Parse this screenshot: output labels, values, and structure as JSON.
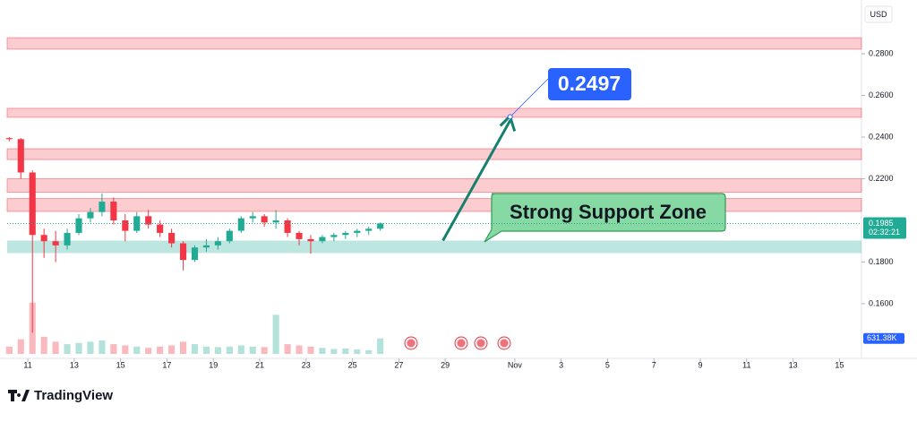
{
  "chart_data": {
    "type": "candlestick",
    "currency": "USD",
    "x": [
      -0.8,
      -0.3,
      0.2,
      0.7,
      1.2,
      1.7,
      2.2,
      2.7,
      3.2,
      3.7,
      4.2,
      4.7,
      5.2,
      5.7,
      6.2,
      6.7,
      7.2,
      7.7,
      8.2,
      8.7,
      9.2,
      9.7,
      10.2,
      10.7,
      11.2,
      11.7,
      12.2,
      12.7,
      13.2,
      13.7,
      14.2,
      14.7,
      15.2
    ],
    "open": [
      0.2395,
      0.239,
      0.223,
      0.193,
      0.19,
      0.188,
      0.194,
      0.201,
      0.204,
      0.209,
      0.2,
      0.195,
      0.202,
      0.198,
      0.194,
      0.189,
      0.181,
      0.187,
      0.188,
      0.19,
      0.195,
      0.201,
      0.202,
      0.199,
      0.2,
      0.194,
      0.191,
      0.19,
      0.192,
      0.193,
      0.194,
      0.195,
      0.196
    ],
    "high": [
      0.24,
      0.2395,
      0.224,
      0.196,
      0.195,
      0.196,
      0.203,
      0.206,
      0.213,
      0.211,
      0.203,
      0.204,
      0.205,
      0.2,
      0.196,
      0.19,
      0.188,
      0.191,
      0.192,
      0.196,
      0.202,
      0.204,
      0.203,
      0.205,
      0.201,
      0.195,
      0.193,
      0.193,
      0.194,
      0.195,
      0.196,
      0.197,
      0.199
    ],
    "low": [
      0.238,
      0.22,
      0.146,
      0.182,
      0.18,
      0.186,
      0.193,
      0.199,
      0.202,
      0.198,
      0.19,
      0.194,
      0.196,
      0.192,
      0.187,
      0.176,
      0.18,
      0.185,
      0.186,
      0.189,
      0.194,
      0.199,
      0.197,
      0.196,
      0.192,
      0.188,
      0.184,
      0.189,
      0.19,
      0.191,
      0.192,
      0.193,
      0.195
    ],
    "close": [
      0.239,
      0.223,
      0.193,
      0.19,
      0.188,
      0.194,
      0.201,
      0.204,
      0.209,
      0.2,
      0.195,
      0.202,
      0.198,
      0.194,
      0.189,
      0.181,
      0.187,
      0.188,
      0.19,
      0.195,
      0.201,
      0.202,
      0.199,
      0.2,
      0.194,
      0.191,
      0.19,
      0.192,
      0.193,
      0.194,
      0.195,
      0.196,
      0.1985
    ],
    "volume": [
      300,
      600,
      2100,
      700,
      500,
      400,
      450,
      500,
      550,
      400,
      350,
      300,
      250,
      300,
      350,
      500,
      400,
      300,
      280,
      300,
      350,
      300,
      280,
      1600,
      400,
      350,
      300,
      250,
      200,
      220,
      180,
      150,
      631.38
    ],
    "volume_label": "631.38K",
    "vlim": [
      0,
      2200
    ],
    "up_color": "#22ab94",
    "down_color": "#f23645",
    "xlim": [
      -0.89,
      35.95
    ],
    "ylim": [
      0.1359,
      0.3058
    ],
    "xticks": [
      {
        "value": 0,
        "label": "11"
      },
      {
        "value": 2,
        "label": "13"
      },
      {
        "value": 4,
        "label": "15"
      },
      {
        "value": 6,
        "label": "17"
      },
      {
        "value": 8,
        "label": "19"
      },
      {
        "value": 10,
        "label": "21"
      },
      {
        "value": 12,
        "label": "23"
      },
      {
        "value": 14,
        "label": "25"
      },
      {
        "value": 16,
        "label": "27"
      },
      {
        "value": 18,
        "label": "29"
      },
      {
        "value": 21,
        "label": "Nov"
      },
      {
        "value": 23,
        "label": "3"
      },
      {
        "value": 25,
        "label": "5"
      },
      {
        "value": 27,
        "label": "7"
      },
      {
        "value": 29,
        "label": "9"
      },
      {
        "value": 31,
        "label": "11"
      },
      {
        "value": 33,
        "label": "13"
      },
      {
        "value": 35,
        "label": "15"
      }
    ],
    "yticks": [
      {
        "value": 0.28,
        "label": "0.2800"
      },
      {
        "value": 0.26,
        "label": "0.2600"
      },
      {
        "value": 0.24,
        "label": "0.2400"
      },
      {
        "value": 0.22,
        "label": "0.2200"
      },
      {
        "value": 0.18,
        "label": "0.1800"
      },
      {
        "value": 0.16,
        "label": "0.1600"
      }
    ],
    "countdown": "02:32:21",
    "resistance_zones": [
      [
        0.2822,
        0.2877
      ],
      [
        0.2495,
        0.2538
      ],
      [
        0.2292,
        0.2344
      ],
      [
        0.2135,
        0.22
      ],
      [
        0.2043,
        0.2105
      ]
    ],
    "support_zone": [
      0.1843,
      0.1903
    ],
    "support_label": "Strong Support Zone",
    "target": 0.2497,
    "brand": "TradingView"
  }
}
